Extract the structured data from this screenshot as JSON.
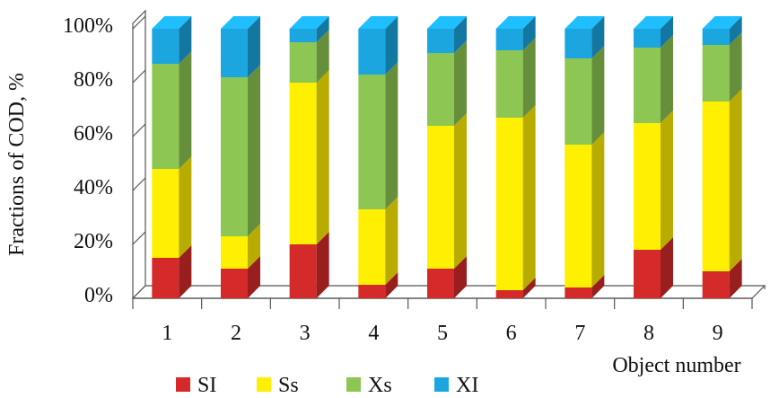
{
  "chart_data": {
    "type": "bar",
    "stacked": true,
    "percent_stacked": true,
    "three_d": true,
    "categories": [
      "1",
      "2",
      "3",
      "4",
      "5",
      "6",
      "7",
      "8",
      "9"
    ],
    "series": [
      {
        "name": "SI",
        "color": "#d42a2a",
        "values": [
          15,
          11,
          20,
          5,
          11,
          3,
          4,
          18,
          10
        ]
      },
      {
        "name": "Ss",
        "color": "#ffef00",
        "values": [
          33,
          12,
          60,
          28,
          53,
          64,
          53,
          47,
          63
        ]
      },
      {
        "name": "Xs",
        "color": "#8dc653",
        "values": [
          39,
          59,
          15,
          50,
          27,
          25,
          32,
          28,
          21
        ]
      },
      {
        "name": "XI",
        "color": "#1ba6e0",
        "values": [
          13,
          18,
          5,
          17,
          9,
          8,
          11,
          7,
          6
        ]
      }
    ],
    "ylabel": "Fractions of COD, %",
    "xlabel": "Object number",
    "yticks": [
      "0%",
      "20%",
      "40%",
      "60%",
      "80%",
      "100%"
    ],
    "ylim": [
      0,
      100
    ],
    "grid": false,
    "legend_position": "bottom-left"
  }
}
